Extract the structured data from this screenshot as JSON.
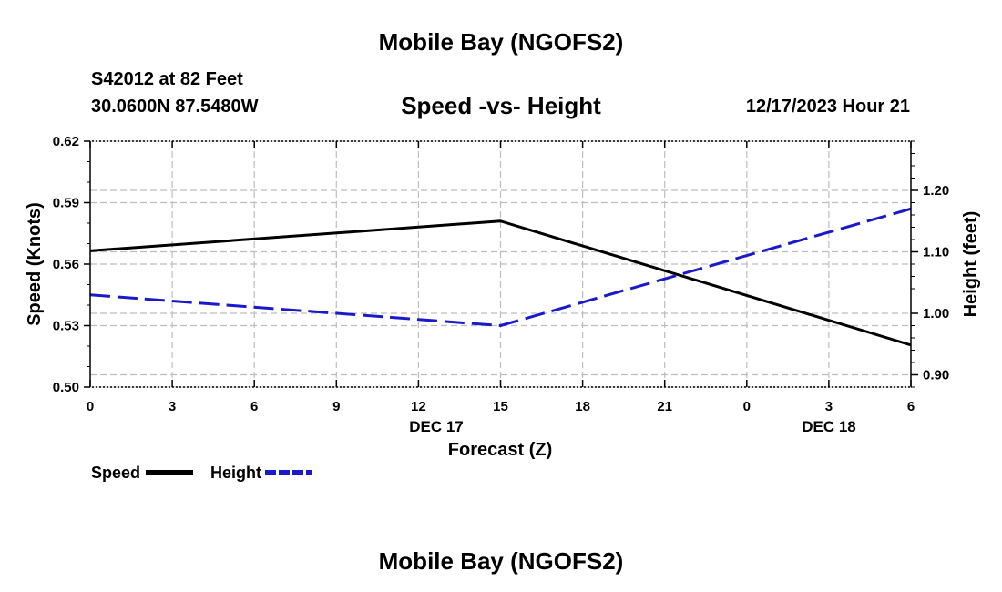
{
  "header": {
    "title": "Mobile Bay (NGOFS2)",
    "station": "S42012 at 82 Feet",
    "coords": "30.0600N  87.5480W",
    "datetime": "12/17/2023 Hour 21"
  },
  "footer": {
    "title": "Mobile Bay (NGOFS2)"
  },
  "chart_data": {
    "type": "line",
    "title": "Speed -vs- Height",
    "xlabel": "Forecast (Z)",
    "ylabel": "Speed (Knots)",
    "y2label": "Height (feet)",
    "x": [
      0,
      3,
      6,
      9,
      12,
      15,
      18,
      21,
      24,
      27,
      30
    ],
    "x_tick_labels": [
      "0",
      "3",
      "6",
      "9",
      "12",
      "15",
      "18",
      "21",
      "0",
      "3",
      "6"
    ],
    "x_date_labels": [
      {
        "label": "DEC 17",
        "x": 12
      },
      {
        "label": "DEC 18",
        "x": 27
      }
    ],
    "xlim": [
      0,
      30
    ],
    "ylim": [
      0.5,
      0.62
    ],
    "y_ticks": [
      0.5,
      0.53,
      0.56,
      0.59,
      0.62
    ],
    "y_tick_labels": [
      "0.50",
      "0.53",
      "0.56",
      "0.59",
      "0.62"
    ],
    "y2lim": [
      0.88,
      1.28
    ],
    "y2_ticks": [
      0.9,
      1.0,
      1.1,
      1.2
    ],
    "y2_tick_labels": [
      "0.90",
      "1.00",
      "1.10",
      "1.20"
    ],
    "grid": true,
    "series": [
      {
        "name": "Speed",
        "axis": "left",
        "color": "#000000",
        "style": "solid",
        "x": [
          0,
          15,
          30
        ],
        "values": [
          0.5665,
          0.581,
          0.5205
        ]
      },
      {
        "name": "Height",
        "axis": "right",
        "color": "#1a1acc",
        "style": "dashed",
        "x": [
          0,
          15,
          30
        ],
        "values": [
          1.03,
          0.98,
          1.17
        ]
      }
    ],
    "legend": [
      {
        "label": "Speed",
        "color": "#000000",
        "style": "solid"
      },
      {
        "label": "Height",
        "color": "#1a1acc",
        "style": "dashed"
      }
    ]
  }
}
